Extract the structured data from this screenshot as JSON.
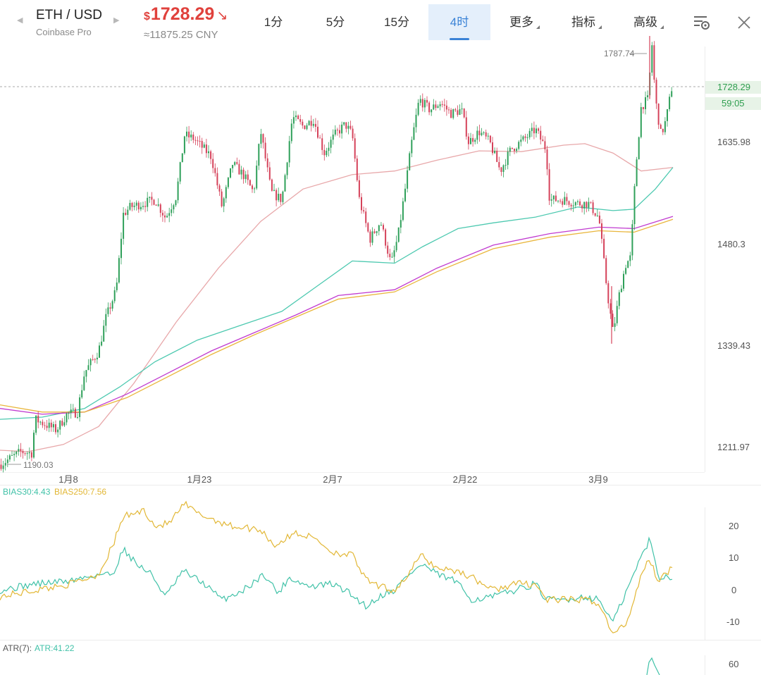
{
  "header": {
    "symbol": "ETH / USD",
    "exchange": "Coinbase Pro",
    "currency_sign": "$",
    "last_price": "1728.29",
    "direction_icon": "↘",
    "cny_price": "≈11875.25 CNY",
    "tabs": [
      "1分",
      "5分",
      "15分",
      "4时",
      "更多",
      "指标",
      "高级"
    ],
    "active_tab": "4时",
    "icons": [
      "left-arrow-icon",
      "right-arrow-icon",
      "chart-settings-icon",
      "close-icon"
    ]
  },
  "colors": {
    "up": "#2fa05a",
    "down": "#d5425a",
    "price_red": "#e0413c",
    "tab_active": "#3a82d6",
    "ma_pink": "#e8a8aa",
    "ma_teal": "#4dc9b0",
    "ma_purple": "#c03ad0",
    "ma_gold": "#e9b63c"
  },
  "chart_data": [
    {
      "type": "candlestick",
      "title": "ETH / USD",
      "interval": "4时",
      "price_ticks": [
        1728.29,
        1635.98,
        1480.3,
        1339.43,
        1211.97
      ],
      "x_tick_labels": [
        "1月8",
        "1月23",
        "2月7",
        "2月22",
        "3月9"
      ],
      "last_price_label": "1728.29",
      "countdown_label": "59:05",
      "high_label": "1787.74",
      "low_label": "1190.03",
      "ylim": [
        1180,
        1805
      ],
      "path_anchors": [
        [
          0,
          1192
        ],
        [
          30,
          1210
        ],
        [
          45,
          1208
        ],
        [
          50,
          1255
        ],
        [
          80,
          1240
        ],
        [
          95,
          1262
        ],
        [
          110,
          1265
        ],
        [
          120,
          1320
        ],
        [
          140,
          1350
        ],
        [
          150,
          1395
        ],
        [
          165,
          1435
        ],
        [
          175,
          1540
        ],
        [
          185,
          1550
        ],
        [
          220,
          1560
        ],
        [
          235,
          1535
        ],
        [
          250,
          1565
        ],
        [
          262,
          1650
        ],
        [
          275,
          1645
        ],
        [
          300,
          1620
        ],
        [
          315,
          1550
        ],
        [
          330,
          1610
        ],
        [
          345,
          1595
        ],
        [
          360,
          1570
        ],
        [
          370,
          1655
        ],
        [
          385,
          1570
        ],
        [
          400,
          1560
        ],
        [
          415,
          1675
        ],
        [
          430,
          1662
        ],
        [
          445,
          1672
        ],
        [
          460,
          1625
        ],
        [
          475,
          1650
        ],
        [
          490,
          1665
        ],
        [
          500,
          1650
        ],
        [
          510,
          1560
        ],
        [
          525,
          1505
        ],
        [
          540,
          1530
        ],
        [
          555,
          1470
        ],
        [
          565,
          1510
        ],
        [
          575,
          1575
        ],
        [
          585,
          1645
        ],
        [
          595,
          1700
        ],
        [
          610,
          1685
        ],
        [
          625,
          1695
        ],
        [
          640,
          1680
        ],
        [
          655,
          1685
        ],
        [
          665,
          1640
        ],
        [
          680,
          1655
        ],
        [
          695,
          1640
        ],
        [
          710,
          1600
        ],
        [
          725,
          1630
        ],
        [
          745,
          1645
        ],
        [
          760,
          1658
        ],
        [
          775,
          1630
        ],
        [
          780,
          1560
        ],
        [
          800,
          1560
        ],
        [
          820,
          1555
        ],
        [
          835,
          1555
        ],
        [
          850,
          1535
        ],
        [
          862,
          1430
        ],
        [
          870,
          1375
        ],
        [
          880,
          1435
        ],
        [
          888,
          1470
        ],
        [
          895,
          1480
        ],
        [
          902,
          1600
        ],
        [
          910,
          1690
        ],
        [
          920,
          1700
        ],
        [
          925,
          1780
        ],
        [
          930,
          1700
        ],
        [
          938,
          1650
        ],
        [
          945,
          1670
        ],
        [
          955,
          1725
        ]
      ],
      "moving_averages": [
        {
          "color": "#e8a8aa",
          "points": [
            [
              0,
              1212
            ],
            [
              40,
              1210
            ],
            [
              90,
              1220
            ],
            [
              140,
              1245
            ],
            [
              190,
              1305
            ],
            [
              250,
              1390
            ],
            [
              310,
              1465
            ],
            [
              370,
              1530
            ],
            [
              430,
              1575
            ],
            [
              500,
              1595
            ],
            [
              560,
              1600
            ],
            [
              620,
              1615
            ],
            [
              680,
              1628
            ],
            [
              740,
              1627
            ],
            [
              800,
              1636
            ],
            [
              830,
              1638
            ],
            [
              870,
              1625
            ],
            [
              910,
              1600
            ],
            [
              955,
              1605
            ]
          ]
        },
        {
          "color": "#4dc9b0",
          "points": [
            [
              0,
              1255
            ],
            [
              60,
              1258
            ],
            [
              120,
              1270
            ],
            [
              170,
              1300
            ],
            [
              220,
              1335
            ],
            [
              280,
              1365
            ],
            [
              340,
              1385
            ],
            [
              400,
              1405
            ],
            [
              450,
              1440
            ],
            [
              500,
              1475
            ],
            [
              560,
              1472
            ],
            [
              600,
              1495
            ],
            [
              650,
              1520
            ],
            [
              700,
              1528
            ],
            [
              760,
              1536
            ],
            [
              820,
              1550
            ],
            [
              870,
              1545
            ],
            [
              900,
              1547
            ],
            [
              930,
              1575
            ],
            [
              955,
              1605
            ]
          ]
        },
        {
          "color": "#c03ad0",
          "points": [
            [
              0,
              1270
            ],
            [
              60,
              1262
            ],
            [
              120,
              1265
            ],
            [
              180,
              1290
            ],
            [
              240,
              1320
            ],
            [
              300,
              1350
            ],
            [
              360,
              1375
            ],
            [
              420,
              1400
            ],
            [
              480,
              1427
            ],
            [
              560,
              1435
            ],
            [
              620,
              1465
            ],
            [
              700,
              1497
            ],
            [
              780,
              1513
            ],
            [
              850,
              1522
            ],
            [
              900,
              1520
            ],
            [
              955,
              1537
            ]
          ]
        },
        {
          "color": "#e9b63c",
          "points": [
            [
              0,
              1275
            ],
            [
              60,
              1265
            ],
            [
              120,
              1265
            ],
            [
              180,
              1285
            ],
            [
              240,
              1315
            ],
            [
              300,
              1345
            ],
            [
              360,
              1372
            ],
            [
              420,
              1397
            ],
            [
              480,
              1422
            ],
            [
              560,
              1432
            ],
            [
              620,
              1460
            ],
            [
              700,
              1492
            ],
            [
              780,
              1508
            ],
            [
              850,
              1517
            ],
            [
              900,
              1515
            ],
            [
              955,
              1533
            ]
          ]
        }
      ]
    },
    {
      "type": "line",
      "title": "BIAS30:4.43 BIAS250:7.56",
      "ticks": [
        20,
        10,
        0,
        -10
      ],
      "ylim": [
        -14.6,
        28
      ],
      "series": [
        {
          "name": "BIAS30:4.43",
          "color": "#41c2a8",
          "points": [
            [
              0,
              0
            ],
            [
              50,
              2
            ],
            [
              100,
              3
            ],
            [
              140,
              5
            ],
            [
              160,
              5
            ],
            [
              175,
              13
            ],
            [
              195,
              8
            ],
            [
              215,
              5
            ],
            [
              235,
              -2
            ],
            [
              260,
              6
            ],
            [
              290,
              2
            ],
            [
              315,
              -3
            ],
            [
              345,
              0
            ],
            [
              375,
              5
            ],
            [
              395,
              -1
            ],
            [
              410,
              4
            ],
            [
              440,
              1
            ],
            [
              470,
              2
            ],
            [
              490,
              0
            ],
            [
              520,
              -5
            ],
            [
              545,
              -1
            ],
            [
              560,
              0
            ],
            [
              580,
              5
            ],
            [
              600,
              8
            ],
            [
              620,
              5
            ],
            [
              645,
              3
            ],
            [
              670,
              -3
            ],
            [
              700,
              -2
            ],
            [
              730,
              0
            ],
            [
              760,
              2
            ],
            [
              775,
              -3
            ],
            [
              800,
              -3
            ],
            [
              830,
              -2
            ],
            [
              850,
              -3
            ],
            [
              870,
              -10
            ],
            [
              890,
              0
            ],
            [
              905,
              8
            ],
            [
              922,
              16
            ],
            [
              935,
              4
            ],
            [
              955,
              4.43
            ]
          ]
        },
        {
          "name": "BIAS250:7.56",
          "color": "#e2b735",
          "points": [
            [
              0,
              -2
            ],
            [
              50,
              0
            ],
            [
              100,
              2
            ],
            [
              140,
              5
            ],
            [
              160,
              14
            ],
            [
              175,
              23
            ],
            [
              205,
              25
            ],
            [
              220,
              20
            ],
            [
              240,
              21
            ],
            [
              262,
              27
            ],
            [
              280,
              24
            ],
            [
              305,
              22
            ],
            [
              330,
              20
            ],
            [
              370,
              19
            ],
            [
              390,
              14
            ],
            [
              420,
              18
            ],
            [
              450,
              16
            ],
            [
              470,
              12
            ],
            [
              500,
              11
            ],
            [
              520,
              3
            ],
            [
              540,
              1
            ],
            [
              560,
              0
            ],
            [
              580,
              5
            ],
            [
              597,
              11
            ],
            [
              620,
              7
            ],
            [
              650,
              6
            ],
            [
              670,
              4
            ],
            [
              700,
              0
            ],
            [
              730,
              2
            ],
            [
              760,
              2
            ],
            [
              775,
              -3
            ],
            [
              800,
              -3
            ],
            [
              830,
              -3
            ],
            [
              850,
              -4
            ],
            [
              870,
              -14
            ],
            [
              890,
              -10
            ],
            [
              910,
              5
            ],
            [
              920,
              10
            ],
            [
              935,
              3
            ],
            [
              955,
              7.56
            ]
          ]
        }
      ]
    },
    {
      "type": "line",
      "title": "ATR(7): ATR:41.22",
      "ticks": [
        60
      ],
      "series": [
        {
          "name": "ATR:41.22",
          "color": "#41c2a8"
        }
      ]
    }
  ]
}
